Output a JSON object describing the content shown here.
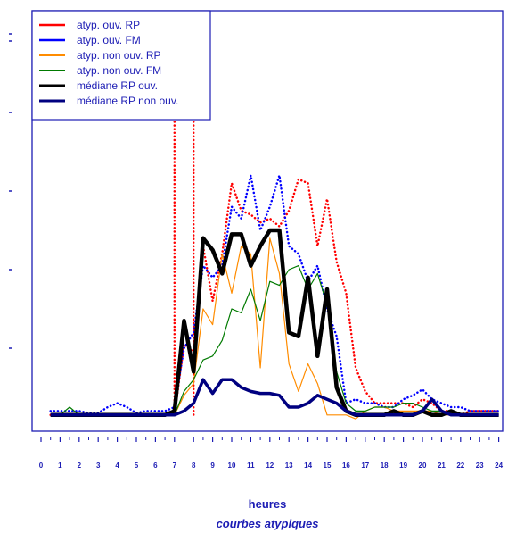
{
  "chart_data": {
    "type": "line",
    "title": "courbes atypiques",
    "xlabel": "heures",
    "ylabel": "",
    "x_ticks": [
      0,
      1,
      2,
      3,
      4,
      5,
      6,
      7,
      8,
      9,
      10,
      11,
      12,
      13,
      14,
      15,
      16,
      17,
      18,
      19,
      20,
      21,
      22,
      23,
      24
    ],
    "xlim": [
      0,
      24
    ],
    "ylim": [
      0,
      10
    ],
    "y_ticks": [
      1,
      2,
      3,
      4,
      5
    ],
    "legend_position": "top-left",
    "colors": {
      "axis": "#1c1cb4",
      "text": "#1c1cb4"
    },
    "x": [
      0.5,
      1,
      1.5,
      2,
      2.5,
      3,
      3.5,
      4,
      4.5,
      5,
      5.5,
      6,
      6.5,
      7,
      7.5,
      8,
      8.5,
      9,
      9.5,
      10,
      10.5,
      11,
      11.5,
      12,
      12.5,
      13,
      13.5,
      14,
      14.5,
      15,
      15.5,
      16,
      16.5,
      17,
      17.5,
      18,
      18.5,
      19,
      19.5,
      20,
      20.5,
      21,
      21.5,
      22,
      22.5,
      23,
      23.5,
      24
    ],
    "series": [
      {
        "name": "atyp. ouv. RP",
        "color": "#ff0000",
        "dash": "dotted",
        "width": 2.5,
        "values": [
          0.3,
          0.3,
          0.3,
          0.3,
          0.3,
          0.3,
          0.3,
          0.3,
          0.3,
          0.3,
          0.3,
          0.3,
          0.3,
          0.3,
          2.1,
          1.9,
          4.6,
          3.2,
          4.4,
          6.2,
          5.5,
          5.4,
          5.2,
          5.3,
          5.1,
          5.5,
          6.3,
          6.2,
          4.6,
          5.8,
          4.2,
          3.4,
          1.5,
          0.9,
          0.6,
          0.6,
          0.6,
          0.6,
          0.5,
          0.7,
          0.6,
          0.4,
          0.4,
          0.3,
          0.4,
          0.4,
          0.4,
          0.4
        ],
        "spikes": [
          {
            "x": 7.0,
            "value": 10.0
          },
          {
            "x": 8.0,
            "value": 10.0
          }
        ]
      },
      {
        "name": "atyp.  ouv. FM",
        "color": "#0000ff",
        "dash": "dotted",
        "width": 2.5,
        "values": [
          0.4,
          0.4,
          0.4,
          0.4,
          0.35,
          0.35,
          0.5,
          0.6,
          0.5,
          0.35,
          0.4,
          0.4,
          0.4,
          0.5,
          2.0,
          2.4,
          4.1,
          3.8,
          4.1,
          5.6,
          5.3,
          6.4,
          5.0,
          5.6,
          6.4,
          4.6,
          4.4,
          3.7,
          4.1,
          3.0,
          2.3,
          0.6,
          0.7,
          0.6,
          0.6,
          0.5,
          0.5,
          0.7,
          0.8,
          0.95,
          0.7,
          0.6,
          0.5,
          0.5,
          0.4,
          0.4,
          0.4,
          0.4
        ]
      },
      {
        "name": "atyp. non ouv. RP",
        "color": "#ff8c00",
        "dash": "solid",
        "width": 1.2,
        "values": [
          0.3,
          0.3,
          0.3,
          0.3,
          0.3,
          0.3,
          0.3,
          0.3,
          0.3,
          0.3,
          0.3,
          0.3,
          0.3,
          0.3,
          0.8,
          1.1,
          3.0,
          2.6,
          4.4,
          3.4,
          4.6,
          4.4,
          1.5,
          4.8,
          3.9,
          1.6,
          0.9,
          1.6,
          1.1,
          0.3,
          0.3,
          0.3,
          0.2,
          0.4,
          0.5,
          0.5,
          0.4,
          0.4,
          0.4,
          0.4,
          0.4,
          0.3,
          0.3,
          0.3,
          0.3,
          0.3,
          0.3,
          0.3
        ]
      },
      {
        "name": "atyp. non ouv. FM",
        "color": "#007a00",
        "dash": "solid",
        "width": 1.2,
        "values": [
          0.3,
          0.3,
          0.5,
          0.3,
          0.3,
          0.3,
          0.3,
          0.3,
          0.3,
          0.3,
          0.3,
          0.3,
          0.3,
          0.3,
          0.9,
          1.2,
          1.7,
          1.8,
          2.2,
          3.0,
          2.9,
          3.5,
          2.7,
          3.7,
          3.6,
          4.0,
          4.1,
          3.5,
          3.9,
          3.1,
          1.4,
          0.6,
          0.4,
          0.4,
          0.5,
          0.5,
          0.5,
          0.6,
          0.6,
          0.5,
          0.4,
          0.4,
          0.3,
          0.3,
          0.3,
          0.3,
          0.3,
          0.3
        ]
      },
      {
        "name": "médiane RP ouv.",
        "color": "#000000",
        "dash": "solid",
        "width": 4.5,
        "values": [
          0.3,
          0.3,
          0.3,
          0.3,
          0.3,
          0.3,
          0.3,
          0.3,
          0.3,
          0.3,
          0.3,
          0.3,
          0.3,
          0.4,
          2.7,
          1.4,
          4.8,
          4.5,
          3.9,
          4.9,
          4.9,
          4.1,
          4.6,
          5.0,
          5.0,
          2.4,
          2.3,
          3.8,
          1.8,
          3.5,
          1.0,
          0.4,
          0.3,
          0.3,
          0.3,
          0.3,
          0.4,
          0.3,
          0.3,
          0.4,
          0.3,
          0.3,
          0.4,
          0.3,
          0.3,
          0.3,
          0.3,
          0.3
        ]
      },
      {
        "name": "médiane RP non ouv.",
        "color": "#000080",
        "dash": "solid",
        "width": 3.5,
        "values": [
          0.3,
          0.3,
          0.3,
          0.3,
          0.3,
          0.3,
          0.3,
          0.3,
          0.3,
          0.3,
          0.3,
          0.3,
          0.3,
          0.3,
          0.4,
          0.6,
          1.2,
          0.85,
          1.2,
          1.2,
          1.0,
          0.9,
          0.85,
          0.85,
          0.8,
          0.5,
          0.5,
          0.6,
          0.8,
          0.7,
          0.6,
          0.4,
          0.3,
          0.3,
          0.3,
          0.3,
          0.3,
          0.3,
          0.3,
          0.4,
          0.7,
          0.4,
          0.3,
          0.3,
          0.3,
          0.3,
          0.3,
          0.3
        ]
      }
    ]
  }
}
